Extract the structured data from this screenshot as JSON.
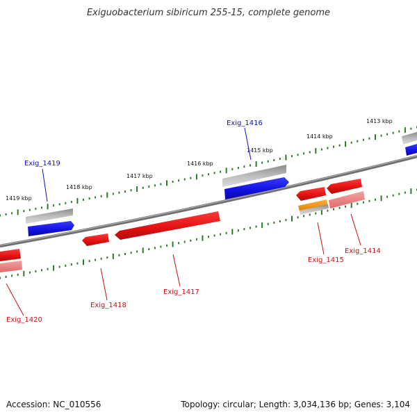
{
  "title": "Exiguobacterium sibiricum 255-15, complete genome",
  "footer": {
    "accession": "Accession: NC_010556",
    "summary": "Topology: circular; Length: 3,034,136 bp; Genes: 3,104"
  },
  "colors": {
    "forward_gene": "#1010e0",
    "reverse_gene": "#e01010",
    "reverse_gene_pale": "#e87a7a",
    "orange_gene": "#f0900c",
    "pseudo_gene": "#9a9a9a",
    "backbone": "#7a7a7a",
    "ticks": "#2a7a2a",
    "label_forward": "#1010c0",
    "label_reverse": "#cc1010"
  },
  "kbp_labels": [
    "1419 kbp",
    "1418 kbp",
    "1417 kbp",
    "1416 kbp",
    "1415 kbp",
    "1414 kbp",
    "1413 kbp"
  ],
  "genes": [
    {
      "name": "Exig_1419",
      "strand": "forward"
    },
    {
      "name": "Exig_1416",
      "strand": "forward"
    },
    {
      "name": "Exig_1420",
      "strand": "reverse"
    },
    {
      "name": "Exig_1418",
      "strand": "reverse"
    },
    {
      "name": "Exig_1417",
      "strand": "reverse"
    },
    {
      "name": "Exig_1415",
      "strand": "reverse"
    },
    {
      "name": "Exig_1414",
      "strand": "reverse"
    }
  ]
}
